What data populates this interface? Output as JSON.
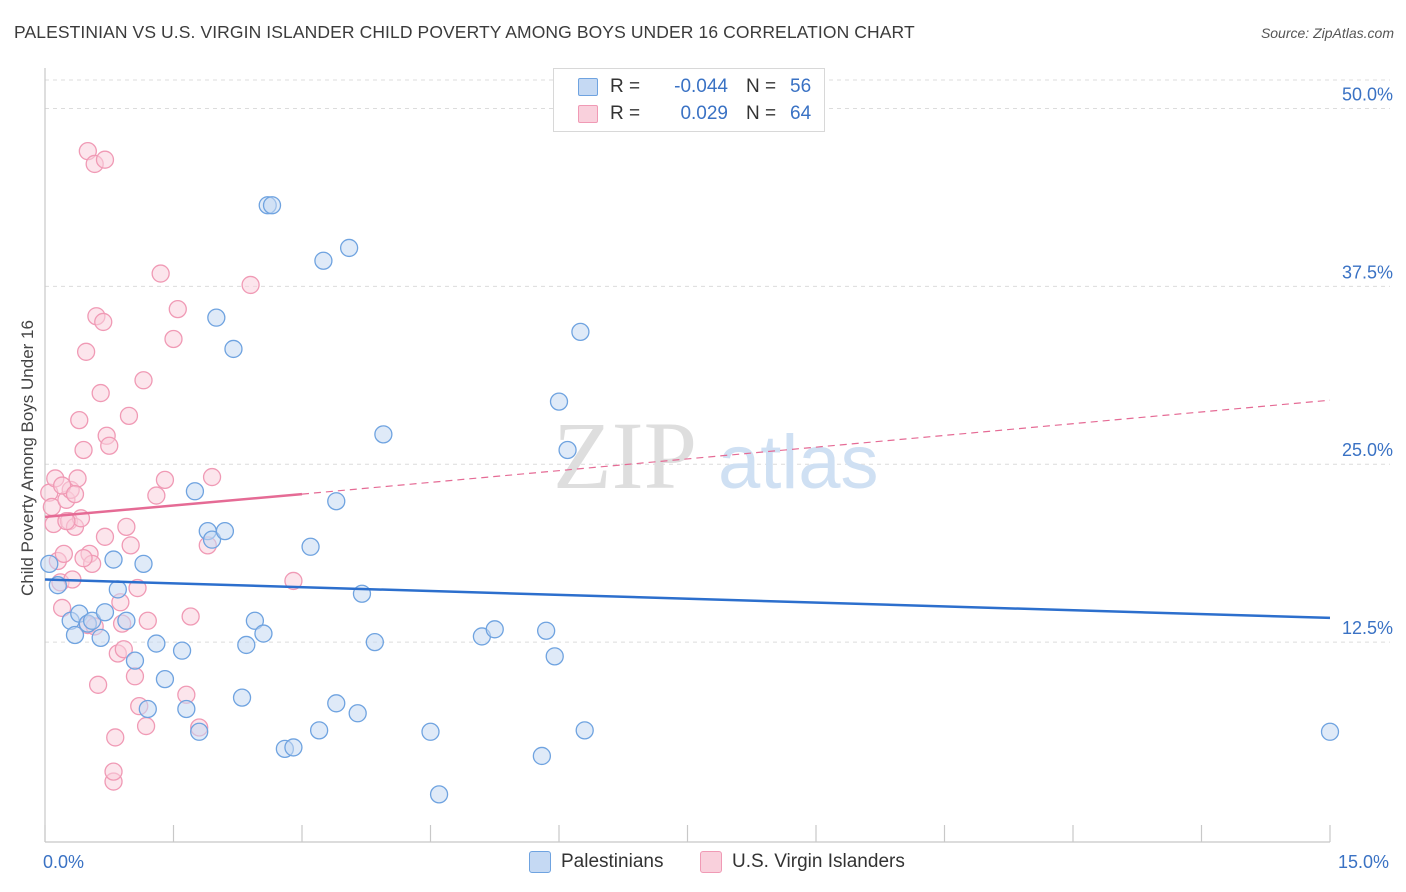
{
  "title": "PALESTINIAN VS U.S. VIRGIN ISLANDER CHILD POVERTY AMONG BOYS UNDER 16 CORRELATION CHART",
  "source": "Source: ZipAtlas.com",
  "watermark": {
    "zip": "ZIP",
    "atlas": "atlas"
  },
  "legend": {
    "rows": [
      {
        "r_key": "R =",
        "r_val": "-0.044",
        "n_key": "N =",
        "n_val": "56"
      },
      {
        "r_key": "R =",
        "r_val": "0.029",
        "n_key": "N =",
        "n_val": "64"
      }
    ]
  },
  "colors": {
    "blue": "#6fa3e0",
    "blue_fill": "#c5d9f3",
    "blue_line": "#2c6fcd",
    "pink": "#f09ab5",
    "pink_fill": "#f9d0dc",
    "pink_line": "#e56b95",
    "axis_label": "#3a72c4",
    "grid": "#dcdcdc"
  },
  "chart_data": {
    "type": "scatter",
    "title": "PALESTINIAN VS U.S. VIRGIN ISLANDER CHILD POVERTY AMONG BOYS UNDER 16 CORRELATION CHART",
    "xlabel": "",
    "ylabel": "Child Poverty Among Boys Under 16",
    "xlim": [
      0,
      15
    ],
    "ylim": [
      0,
      52
    ],
    "x_tick_labels": [
      "0.0%",
      "15.0%"
    ],
    "y_ticks": [
      12.5,
      25.0,
      37.5,
      50.0
    ],
    "y_tick_labels": [
      "12.5%",
      "25.0%",
      "37.5%",
      "50.0%"
    ],
    "series": [
      {
        "name": "Palestinians",
        "color": "#6fa3e0",
        "points": [
          [
            0.05,
            18.0
          ],
          [
            0.15,
            16.5
          ],
          [
            0.3,
            14.0
          ],
          [
            0.35,
            13.0
          ],
          [
            0.4,
            14.5
          ],
          [
            0.5,
            13.8
          ],
          [
            0.55,
            14.0
          ],
          [
            0.65,
            12.8
          ],
          [
            0.7,
            14.6
          ],
          [
            0.85,
            16.2
          ],
          [
            0.95,
            14.0
          ],
          [
            0.8,
            18.3
          ],
          [
            1.05,
            11.2
          ],
          [
            1.15,
            18.0
          ],
          [
            1.3,
            12.4
          ],
          [
            1.4,
            9.9
          ],
          [
            1.2,
            7.8
          ],
          [
            1.6,
            11.9
          ],
          [
            1.65,
            7.8
          ],
          [
            1.75,
            23.1
          ],
          [
            1.8,
            6.2
          ],
          [
            1.9,
            20.3
          ],
          [
            1.95,
            19.7
          ],
          [
            2.0,
            35.3
          ],
          [
            2.1,
            20.3
          ],
          [
            2.2,
            33.1
          ],
          [
            2.3,
            8.6
          ],
          [
            2.35,
            12.3
          ],
          [
            2.45,
            14.0
          ],
          [
            2.55,
            13.1
          ],
          [
            2.6,
            43.2
          ],
          [
            2.65,
            43.2
          ],
          [
            2.8,
            5.0
          ],
          [
            2.9,
            5.1
          ],
          [
            3.1,
            19.2
          ],
          [
            3.2,
            6.3
          ],
          [
            3.25,
            39.3
          ],
          [
            3.4,
            8.2
          ],
          [
            3.55,
            40.2
          ],
          [
            3.65,
            7.5
          ],
          [
            3.7,
            15.9
          ],
          [
            3.85,
            12.5
          ],
          [
            3.95,
            27.1
          ],
          [
            4.5,
            6.2
          ],
          [
            4.6,
            1.8
          ],
          [
            5.1,
            12.9
          ],
          [
            5.25,
            13.4
          ],
          [
            5.8,
            4.5
          ],
          [
            5.85,
            13.3
          ],
          [
            5.95,
            11.5
          ],
          [
            6.0,
            29.4
          ],
          [
            6.1,
            26.0
          ],
          [
            6.25,
            34.3
          ],
          [
            6.3,
            6.3
          ],
          [
            3.4,
            22.4
          ],
          [
            15.0,
            6.2
          ]
        ],
        "trend": [
          [
            0,
            16.9
          ],
          [
            15,
            14.2
          ]
        ]
      },
      {
        "name": "U.S. Virgin Islanders",
        "color": "#f09ab5",
        "points": [
          [
            0.05,
            23.0
          ],
          [
            0.08,
            22.0
          ],
          [
            0.1,
            20.8
          ],
          [
            0.12,
            24.0
          ],
          [
            0.15,
            18.2
          ],
          [
            0.18,
            16.7
          ],
          [
            0.2,
            14.9
          ],
          [
            0.22,
            18.7
          ],
          [
            0.25,
            22.5
          ],
          [
            0.28,
            21.0
          ],
          [
            0.3,
            23.2
          ],
          [
            0.32,
            16.9
          ],
          [
            0.35,
            20.6
          ],
          [
            0.38,
            24.0
          ],
          [
            0.4,
            28.1
          ],
          [
            0.42,
            21.2
          ],
          [
            0.45,
            26.0
          ],
          [
            0.48,
            32.9
          ],
          [
            0.5,
            13.7
          ],
          [
            0.52,
            18.7
          ],
          [
            0.55,
            18.0
          ],
          [
            0.58,
            13.6
          ],
          [
            0.6,
            35.4
          ],
          [
            0.62,
            9.5
          ],
          [
            0.65,
            30.0
          ],
          [
            0.68,
            35.0
          ],
          [
            0.7,
            19.9
          ],
          [
            0.72,
            27.0
          ],
          [
            0.75,
            26.3
          ],
          [
            0.8,
            2.7
          ],
          [
            0.82,
            5.8
          ],
          [
            0.85,
            11.7
          ],
          [
            0.88,
            15.3
          ],
          [
            0.9,
            13.8
          ],
          [
            0.92,
            12.0
          ],
          [
            0.95,
            20.6
          ],
          [
            0.98,
            28.4
          ],
          [
            1.0,
            19.3
          ],
          [
            1.05,
            10.1
          ],
          [
            1.08,
            16.3
          ],
          [
            1.1,
            8.0
          ],
          [
            1.15,
            30.9
          ],
          [
            1.18,
            6.6
          ],
          [
            1.2,
            14.0
          ],
          [
            1.3,
            22.8
          ],
          [
            1.35,
            38.4
          ],
          [
            1.4,
            23.9
          ],
          [
            1.5,
            33.8
          ],
          [
            1.55,
            35.9
          ],
          [
            1.65,
            8.8
          ],
          [
            1.7,
            14.3
          ],
          [
            1.8,
            6.5
          ],
          [
            1.9,
            19.3
          ],
          [
            1.95,
            24.1
          ],
          [
            0.5,
            47.0
          ],
          [
            0.58,
            46.1
          ],
          [
            0.7,
            46.4
          ],
          [
            0.8,
            3.4
          ],
          [
            2.4,
            37.6
          ],
          [
            2.9,
            16.8
          ],
          [
            0.25,
            21.0
          ],
          [
            0.2,
            23.5
          ],
          [
            0.45,
            18.4
          ],
          [
            0.35,
            22.9
          ]
        ],
        "trend_solid": [
          [
            0,
            21.3
          ],
          [
            3.0,
            22.9
          ]
        ],
        "trend_dashed": [
          [
            3.0,
            22.9
          ],
          [
            15,
            29.5
          ]
        ]
      }
    ]
  },
  "bottom_legend": [
    {
      "label": "Palestinians"
    },
    {
      "label": "U.S. Virgin Islanders"
    }
  ]
}
